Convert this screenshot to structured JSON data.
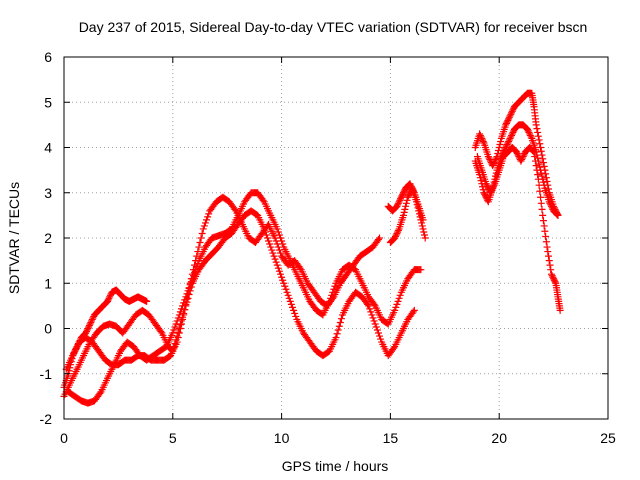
{
  "chart_data": {
    "type": "scatter",
    "title": "Day 237 of 2015, Sidereal Day-to-day VTEC variation (SDTVAR) for receiver bscn",
    "xlabel": "GPS time / hours",
    "ylabel": "SDTVAR / TECUs",
    "xlim": [
      0,
      25
    ],
    "ylim": [
      -2,
      6
    ],
    "xticks": [
      "0",
      "5",
      "10",
      "15",
      "20",
      "25"
    ],
    "yticks": [
      "-2",
      "-1",
      "0",
      "1",
      "2",
      "3",
      "4",
      "5",
      "6"
    ],
    "grid": true,
    "marker": "plus",
    "color": "#ff0000",
    "series": [
      {
        "points": [
          [
            0.0,
            -1.3
          ],
          [
            0.2,
            -1.0
          ],
          [
            0.4,
            -0.6
          ],
          [
            0.6,
            -0.4
          ],
          [
            0.8,
            -0.2
          ],
          [
            1.0,
            -0.1
          ],
          [
            1.2,
            0.1
          ],
          [
            1.4,
            0.3
          ],
          [
            1.6,
            0.4
          ],
          [
            1.8,
            0.5
          ],
          [
            2.0,
            0.6
          ],
          [
            2.2,
            0.8
          ],
          [
            2.4,
            0.85
          ],
          [
            2.6,
            0.75
          ],
          [
            2.8,
            0.65
          ],
          [
            3.0,
            0.6
          ],
          [
            3.2,
            0.65
          ],
          [
            3.4,
            0.7
          ],
          [
            3.6,
            0.65
          ],
          [
            3.8,
            0.6
          ]
        ]
      },
      {
        "points": [
          [
            0.0,
            -1.5
          ],
          [
            0.3,
            -1.2
          ],
          [
            0.6,
            -0.9
          ],
          [
            0.9,
            -0.6
          ],
          [
            1.2,
            -0.3
          ],
          [
            1.5,
            -0.1
          ],
          [
            1.8,
            0.05
          ],
          [
            2.1,
            0.1
          ],
          [
            2.4,
            0.05
          ],
          [
            2.7,
            -0.1
          ],
          [
            3.0,
            0.1
          ],
          [
            3.3,
            0.3
          ],
          [
            3.6,
            0.4
          ],
          [
            3.9,
            0.3
          ],
          [
            4.2,
            0.1
          ],
          [
            4.5,
            -0.1
          ],
          [
            4.8,
            -0.4
          ],
          [
            5.0,
            -0.5
          ],
          [
            5.3,
            0.0
          ],
          [
            5.6,
            0.5
          ],
          [
            5.9,
            1.0
          ],
          [
            6.2,
            1.3
          ],
          [
            6.5,
            1.5
          ],
          [
            6.8,
            1.65
          ],
          [
            7.1,
            1.8
          ],
          [
            7.4,
            2.0
          ],
          [
            7.7,
            2.1
          ],
          [
            8.0,
            2.3
          ],
          [
            8.3,
            2.5
          ],
          [
            8.6,
            2.6
          ],
          [
            8.9,
            2.5
          ],
          [
            9.2,
            2.2
          ],
          [
            9.5,
            1.8
          ],
          [
            9.8,
            1.4
          ],
          [
            10.1,
            1.0
          ],
          [
            10.4,
            0.6
          ],
          [
            10.7,
            0.2
          ],
          [
            11.0,
            -0.1
          ],
          [
            11.3,
            -0.3
          ],
          [
            11.6,
            -0.5
          ],
          [
            11.9,
            -0.6
          ],
          [
            12.2,
            -0.5
          ],
          [
            12.5,
            -0.2
          ],
          [
            12.8,
            0.3
          ],
          [
            13.1,
            0.6
          ],
          [
            13.4,
            0.8
          ],
          [
            13.7,
            0.7
          ],
          [
            14.0,
            0.5
          ],
          [
            14.3,
            0.1
          ],
          [
            14.6,
            -0.3
          ],
          [
            14.9,
            -0.6
          ],
          [
            15.2,
            -0.4
          ],
          [
            15.5,
            -0.1
          ],
          [
            15.8,
            0.2
          ],
          [
            16.1,
            0.4
          ]
        ]
      },
      {
        "points": [
          [
            0.1,
            -0.9
          ],
          [
            0.4,
            -0.6
          ],
          [
            0.7,
            -0.3
          ],
          [
            1.0,
            -0.2
          ],
          [
            1.3,
            -0.3
          ],
          [
            1.6,
            -0.5
          ],
          [
            1.9,
            -0.7
          ],
          [
            2.2,
            -0.8
          ],
          [
            2.5,
            -0.8
          ],
          [
            2.8,
            -0.7
          ],
          [
            3.1,
            -0.7
          ],
          [
            3.4,
            -0.6
          ],
          [
            3.7,
            -0.6
          ],
          [
            4.0,
            -0.7
          ],
          [
            4.3,
            -0.7
          ],
          [
            4.6,
            -0.7
          ],
          [
            4.9,
            -0.6
          ],
          [
            5.2,
            -0.3
          ],
          [
            5.5,
            0.3
          ],
          [
            5.8,
            1.0
          ],
          [
            6.1,
            1.6
          ],
          [
            6.4,
            2.2
          ],
          [
            6.7,
            2.6
          ],
          [
            7.0,
            2.8
          ],
          [
            7.3,
            2.9
          ],
          [
            7.6,
            2.8
          ],
          [
            7.9,
            2.6
          ],
          [
            8.2,
            2.3
          ],
          [
            8.5,
            2.0
          ],
          [
            8.8,
            1.9
          ],
          [
            9.1,
            2.1
          ],
          [
            9.4,
            2.3
          ],
          [
            9.7,
            2.0
          ],
          [
            10.0,
            1.6
          ],
          [
            10.3,
            1.4
          ],
          [
            10.6,
            1.5
          ],
          [
            10.9,
            1.3
          ],
          [
            11.2,
            1.0
          ],
          [
            11.5,
            0.8
          ],
          [
            11.8,
            0.6
          ],
          [
            12.1,
            0.5
          ],
          [
            12.4,
            0.7
          ],
          [
            12.7,
            1.0
          ],
          [
            13.0,
            1.2
          ],
          [
            13.3,
            1.4
          ],
          [
            13.6,
            1.6
          ],
          [
            13.9,
            1.7
          ],
          [
            14.2,
            1.8
          ],
          [
            14.5,
            2.0
          ]
        ]
      },
      {
        "points": [
          [
            0.2,
            -1.4
          ],
          [
            0.5,
            -1.5
          ],
          [
            0.8,
            -1.6
          ],
          [
            1.1,
            -1.65
          ],
          [
            1.4,
            -1.6
          ],
          [
            1.7,
            -1.4
          ],
          [
            2.0,
            -1.1
          ],
          [
            2.3,
            -0.8
          ],
          [
            2.6,
            -0.5
          ],
          [
            2.9,
            -0.3
          ],
          [
            3.2,
            -0.4
          ],
          [
            3.5,
            -0.6
          ],
          [
            3.8,
            -0.7
          ],
          [
            4.1,
            -0.6
          ],
          [
            4.4,
            -0.5
          ],
          [
            4.7,
            -0.4
          ],
          [
            5.0,
            -0.1
          ],
          [
            5.3,
            0.3
          ],
          [
            5.6,
            0.7
          ],
          [
            5.9,
            1.1
          ],
          [
            6.2,
            1.5
          ],
          [
            6.5,
            1.8
          ],
          [
            6.8,
            2.0
          ],
          [
            7.1,
            2.05
          ],
          [
            7.4,
            2.1
          ],
          [
            7.7,
            2.2
          ],
          [
            8.0,
            2.5
          ],
          [
            8.3,
            2.8
          ],
          [
            8.6,
            3.0
          ],
          [
            8.9,
            3.0
          ],
          [
            9.2,
            2.8
          ],
          [
            9.5,
            2.5
          ],
          [
            9.8,
            2.2
          ],
          [
            10.1,
            1.8
          ],
          [
            10.4,
            1.5
          ],
          [
            10.7,
            1.2
          ],
          [
            11.0,
            0.9
          ],
          [
            11.3,
            0.6
          ],
          [
            11.6,
            0.4
          ],
          [
            11.9,
            0.3
          ],
          [
            12.2,
            0.6
          ],
          [
            12.5,
            1.0
          ],
          [
            12.8,
            1.3
          ],
          [
            13.1,
            1.4
          ],
          [
            13.4,
            1.3
          ],
          [
            13.7,
            1.0
          ],
          [
            14.0,
            0.7
          ],
          [
            14.3,
            0.5
          ],
          [
            14.6,
            0.2
          ],
          [
            14.9,
            0.1
          ],
          [
            15.2,
            0.4
          ],
          [
            15.5,
            0.8
          ],
          [
            15.8,
            1.1
          ],
          [
            16.1,
            1.3
          ],
          [
            16.4,
            1.3
          ]
        ]
      },
      {
        "points": [
          [
            14.9,
            2.7
          ],
          [
            15.1,
            2.6
          ],
          [
            15.3,
            2.7
          ],
          [
            15.5,
            2.9
          ],
          [
            15.7,
            3.1
          ],
          [
            15.9,
            3.2
          ],
          [
            16.1,
            3.0
          ],
          [
            16.3,
            2.7
          ],
          [
            16.5,
            2.4
          ]
        ]
      },
      {
        "points": [
          [
            15.0,
            1.9
          ],
          [
            15.2,
            2.0
          ],
          [
            15.4,
            2.2
          ],
          [
            15.6,
            2.5
          ],
          [
            15.8,
            2.9
          ],
          [
            16.0,
            3.1
          ],
          [
            16.2,
            2.8
          ],
          [
            16.4,
            2.4
          ],
          [
            16.6,
            2.0
          ]
        ]
      },
      {
        "points": [
          [
            18.9,
            4.0
          ],
          [
            19.1,
            4.3
          ],
          [
            19.3,
            4.1
          ],
          [
            19.5,
            3.8
          ],
          [
            19.7,
            3.6
          ],
          [
            19.9,
            3.8
          ],
          [
            20.1,
            4.2
          ],
          [
            20.3,
            4.5
          ],
          [
            20.5,
            4.7
          ],
          [
            20.7,
            4.9
          ],
          [
            20.9,
            5.0
          ],
          [
            21.1,
            5.1
          ],
          [
            21.3,
            5.2
          ],
          [
            21.5,
            5.2
          ],
          [
            21.6,
            4.9
          ],
          [
            21.7,
            4.5
          ],
          [
            21.9,
            4.0
          ],
          [
            22.1,
            3.5
          ],
          [
            22.3,
            3.0
          ],
          [
            22.5,
            2.7
          ],
          [
            22.7,
            2.5
          ]
        ]
      },
      {
        "points": [
          [
            18.9,
            3.7
          ],
          [
            19.1,
            3.4
          ],
          [
            19.3,
            3.0
          ],
          [
            19.5,
            2.8
          ],
          [
            19.7,
            3.1
          ],
          [
            19.9,
            3.5
          ],
          [
            20.1,
            3.8
          ],
          [
            20.3,
            4.0
          ],
          [
            20.5,
            4.2
          ],
          [
            20.7,
            4.4
          ],
          [
            20.9,
            4.5
          ],
          [
            21.1,
            4.5
          ],
          [
            21.3,
            4.4
          ],
          [
            21.5,
            4.2
          ],
          [
            21.7,
            3.9
          ],
          [
            21.9,
            3.5
          ],
          [
            22.1,
            3.1
          ],
          [
            22.3,
            2.8
          ],
          [
            22.5,
            2.6
          ],
          [
            22.7,
            2.5
          ]
        ]
      },
      {
        "points": [
          [
            19.0,
            3.8
          ],
          [
            19.2,
            3.5
          ],
          [
            19.4,
            3.2
          ],
          [
            19.6,
            3.0
          ],
          [
            19.8,
            3.2
          ],
          [
            20.0,
            3.5
          ],
          [
            20.2,
            3.8
          ],
          [
            20.4,
            3.9
          ],
          [
            20.6,
            4.0
          ],
          [
            20.8,
            3.9
          ],
          [
            21.0,
            3.7
          ],
          [
            21.2,
            3.9
          ],
          [
            21.4,
            4.0
          ],
          [
            21.6,
            3.9
          ],
          [
            21.8,
            3.3
          ],
          [
            22.0,
            2.5
          ],
          [
            22.2,
            1.8
          ],
          [
            22.4,
            1.2
          ],
          [
            22.6,
            1.0
          ],
          [
            22.7,
            0.7
          ],
          [
            22.8,
            0.4
          ]
        ]
      }
    ]
  }
}
